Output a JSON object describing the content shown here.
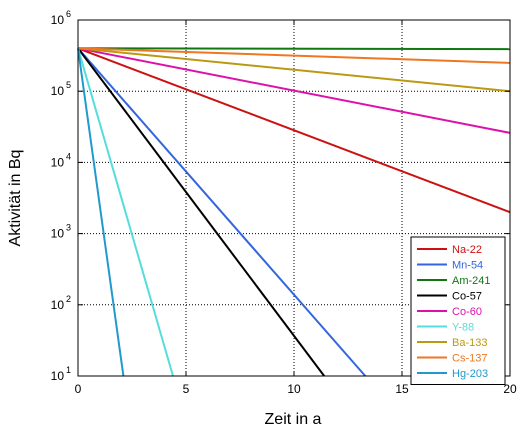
{
  "chart_data": {
    "type": "line",
    "xlabel": "Zeit in a",
    "ylabel": "Aktivität in Bq",
    "xlim": [
      0,
      20
    ],
    "ylim": [
      10,
      1000000
    ],
    "yscale": "log",
    "grid": true,
    "grid_style": "dotted",
    "legend_placement": "bottom-right",
    "x_ticks": [
      0,
      5,
      10,
      15,
      20
    ],
    "y_ticks": [
      10,
      100,
      1000,
      10000,
      100000,
      1000000
    ],
    "y_tick_base": "10",
    "y_tick_exponents": [
      "1",
      "2",
      "3",
      "4",
      "5",
      "6"
    ],
    "series": [
      {
        "name": "Na-22",
        "color": "#cc1111",
        "x": [
          0,
          20
        ],
        "values": [
          400000,
          2000
        ]
      },
      {
        "name": "Mn-54",
        "color": "#3366dd",
        "x": [
          0,
          13.3
        ],
        "values": [
          400000,
          10
        ]
      },
      {
        "name": "Am-241",
        "color": "#117711",
        "x": [
          0,
          20
        ],
        "values": [
          400000,
          390000
        ]
      },
      {
        "name": "Co-57",
        "color": "#000000",
        "x": [
          0,
          11.4
        ],
        "values": [
          400000,
          10
        ]
      },
      {
        "name": "Co-60",
        "color": "#dd11aa",
        "x": [
          0,
          20
        ],
        "values": [
          400000,
          26000
        ]
      },
      {
        "name": "Y-88",
        "color": "#55dddd",
        "x": [
          0,
          4.4
        ],
        "values": [
          400000,
          10
        ]
      },
      {
        "name": "Ba-133",
        "color": "#bb9911",
        "x": [
          0,
          20
        ],
        "values": [
          400000,
          100000
        ]
      },
      {
        "name": "Cs-137",
        "color": "#ee7722",
        "x": [
          0,
          20
        ],
        "values": [
          400000,
          250000
        ]
      },
      {
        "name": "Hg-203",
        "color": "#2299cc",
        "x": [
          0,
          2.1
        ],
        "values": [
          400000,
          10
        ]
      }
    ]
  }
}
